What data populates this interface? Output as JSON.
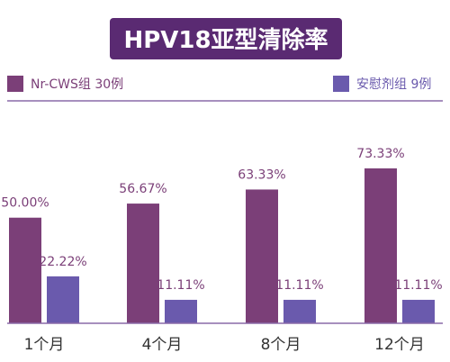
{
  "chart_data": {
    "type": "bar",
    "title": "HPV18亚型清除率",
    "categories": [
      "1个月",
      "4个月",
      "8个月",
      "12个月"
    ],
    "series": [
      {
        "name": "Nr-CWS组 30例",
        "values": [
          50.0,
          56.67,
          63.33,
          73.33
        ],
        "labels": [
          "50.00%",
          "56.67%",
          "63.33%",
          "73.33%"
        ]
      },
      {
        "name": "安慰剂组 9例",
        "values": [
          22.22,
          11.11,
          11.11,
          11.11
        ],
        "labels": [
          "22.22%",
          "11.11%",
          "11.11%",
          "11.11%"
        ]
      }
    ],
    "ylim": [
      0,
      100
    ],
    "grid": false,
    "legend": "top",
    "colors": {
      "series1": "#7b3f78",
      "series2": "#6a5aad",
      "title_bg": "#5a2a72",
      "title_text": "#ffffff",
      "label": "#7b3f78",
      "axis_line": "#8a6aa8"
    }
  }
}
